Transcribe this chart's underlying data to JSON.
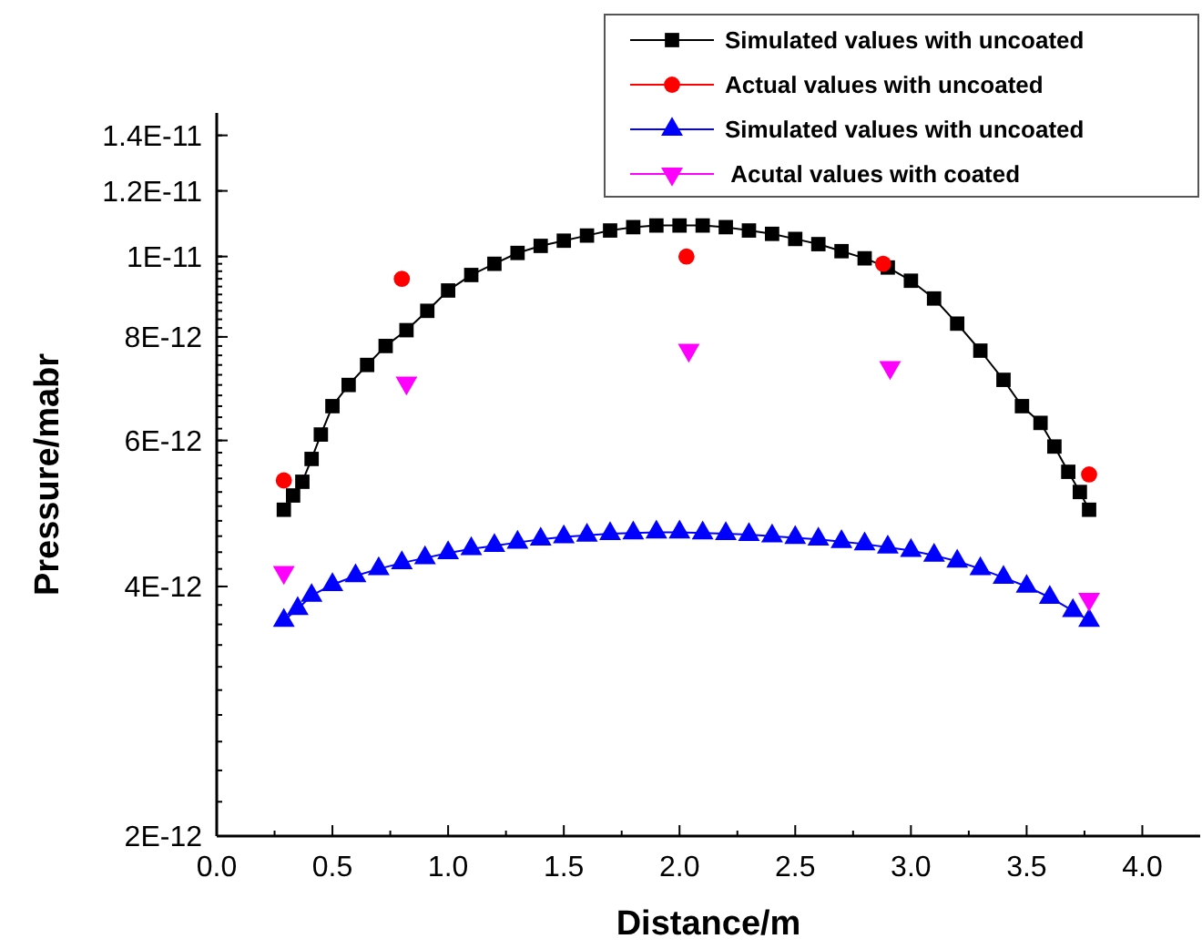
{
  "chart_data": {
    "type": "line",
    "xlabel": "Distance/m",
    "ylabel": "Pressure/mabr",
    "log": true,
    "grid": false,
    "legend": "top right",
    "xlim": [
      0,
      4.25
    ],
    "xticks": [
      {
        "value": 0,
        "label": "0.0"
      },
      {
        "value": 0.5,
        "label": "0.5"
      },
      {
        "value": 1,
        "label": "1.0"
      },
      {
        "value": 1.5,
        "label": "1.5"
      },
      {
        "value": 2,
        "label": "2.0"
      },
      {
        "value": 2.5,
        "label": "2.5"
      },
      {
        "value": 3,
        "label": "3.0"
      },
      {
        "value": 3.5,
        "label": "3.5"
      },
      {
        "value": 4,
        "label": "4.0"
      }
    ],
    "ylim": [
      2e-12,
      1.49e-11
    ],
    "yticks": [
      {
        "value": 2e-12,
        "label": "2E-12"
      },
      {
        "value": 4e-12,
        "label": "4E-12"
      },
      {
        "value": 6e-12,
        "label": "6E-12"
      },
      {
        "value": 8e-12,
        "label": "8E-12"
      },
      {
        "value": 1e-11,
        "label": "1E-11"
      },
      {
        "value": 1.2e-11,
        "label": "1.2E-11"
      },
      {
        "value": 1.4e-11,
        "label": "1.4E-11"
      }
    ],
    "series": [
      {
        "name": "Simulated values with uncoated",
        "marker": "square",
        "color": "#000000",
        "x": [
          0.29,
          0.33,
          0.37,
          0.41,
          0.45,
          0.5,
          0.57,
          0.65,
          0.73,
          0.82,
          0.91,
          1.0,
          1.1,
          1.2,
          1.3,
          1.4,
          1.5,
          1.6,
          1.7,
          1.8,
          1.9,
          2.0,
          2.1,
          2.2,
          2.3,
          2.4,
          2.5,
          2.6,
          2.7,
          2.8,
          2.9,
          3.0,
          3.1,
          3.2,
          3.3,
          3.4,
          3.48,
          3.56,
          3.62,
          3.68,
          3.73,
          3.77
        ],
        "values": [
          4.95e-12,
          5.15e-12,
          5.35e-12,
          5.7e-12,
          6.1e-12,
          6.6e-12,
          7e-12,
          7.4e-12,
          7.8e-12,
          8.15e-12,
          8.6e-12,
          9.1e-12,
          9.5e-12,
          9.8e-12,
          1.01e-11,
          1.03e-11,
          1.045e-11,
          1.06e-11,
          1.075e-11,
          1.085e-11,
          1.09e-11,
          1.09e-11,
          1.09e-11,
          1.085e-11,
          1.075e-11,
          1.065e-11,
          1.05e-11,
          1.035e-11,
          1.015e-11,
          9.95e-12,
          9.7e-12,
          9.35e-12,
          8.9e-12,
          8.3e-12,
          7.7e-12,
          7.1e-12,
          6.6e-12,
          6.3e-12,
          5.9e-12,
          5.5e-12,
          5.2e-12,
          4.95e-12
        ]
      },
      {
        "name": "Actual values with uncoated",
        "type": "scatter",
        "marker": "circle",
        "color": "#ff0000",
        "x": [
          0.29,
          0.8,
          2.03,
          2.88,
          3.77
        ],
        "values": [
          5.37e-12,
          9.4e-12,
          1e-11,
          9.8e-12,
          5.46e-12
        ]
      },
      {
        "name": "Simulated values with uncoated",
        "marker": "triangle",
        "color": "#0000ff",
        "x": [
          0.29,
          0.35,
          0.41,
          0.5,
          0.6,
          0.7,
          0.8,
          0.9,
          1.0,
          1.1,
          1.2,
          1.3,
          1.4,
          1.5,
          1.6,
          1.7,
          1.8,
          1.9,
          2.0,
          2.1,
          2.2,
          2.3,
          2.4,
          2.5,
          2.6,
          2.7,
          2.8,
          2.9,
          3.0,
          3.1,
          3.2,
          3.3,
          3.4,
          3.5,
          3.6,
          3.7,
          3.77
        ],
        "values": [
          3.64e-12,
          3.76e-12,
          3.9e-12,
          4.02e-12,
          4.12e-12,
          4.2e-12,
          4.27e-12,
          4.33e-12,
          4.39e-12,
          4.44e-12,
          4.48e-12,
          4.52e-12,
          4.56e-12,
          4.59e-12,
          4.61e-12,
          4.63e-12,
          4.64e-12,
          4.65e-12,
          4.65e-12,
          4.64e-12,
          4.63e-12,
          4.62e-12,
          4.6e-12,
          4.58e-12,
          4.56e-12,
          4.53e-12,
          4.5e-12,
          4.46e-12,
          4.42e-12,
          4.36e-12,
          4.29e-12,
          4.2e-12,
          4.1e-12,
          4e-12,
          3.88e-12,
          3.74e-12,
          3.64e-12
        ]
      },
      {
        "name": " Acutal values with coated",
        "type": "scatter",
        "marker": "triangle-down",
        "color": "#ff00ff",
        "x": [
          0.29,
          0.82,
          2.04,
          2.91,
          3.77
        ],
        "values": [
          4.16e-12,
          7.04e-12,
          7.71e-12,
          7.35e-12,
          3.86e-12
        ]
      }
    ]
  }
}
